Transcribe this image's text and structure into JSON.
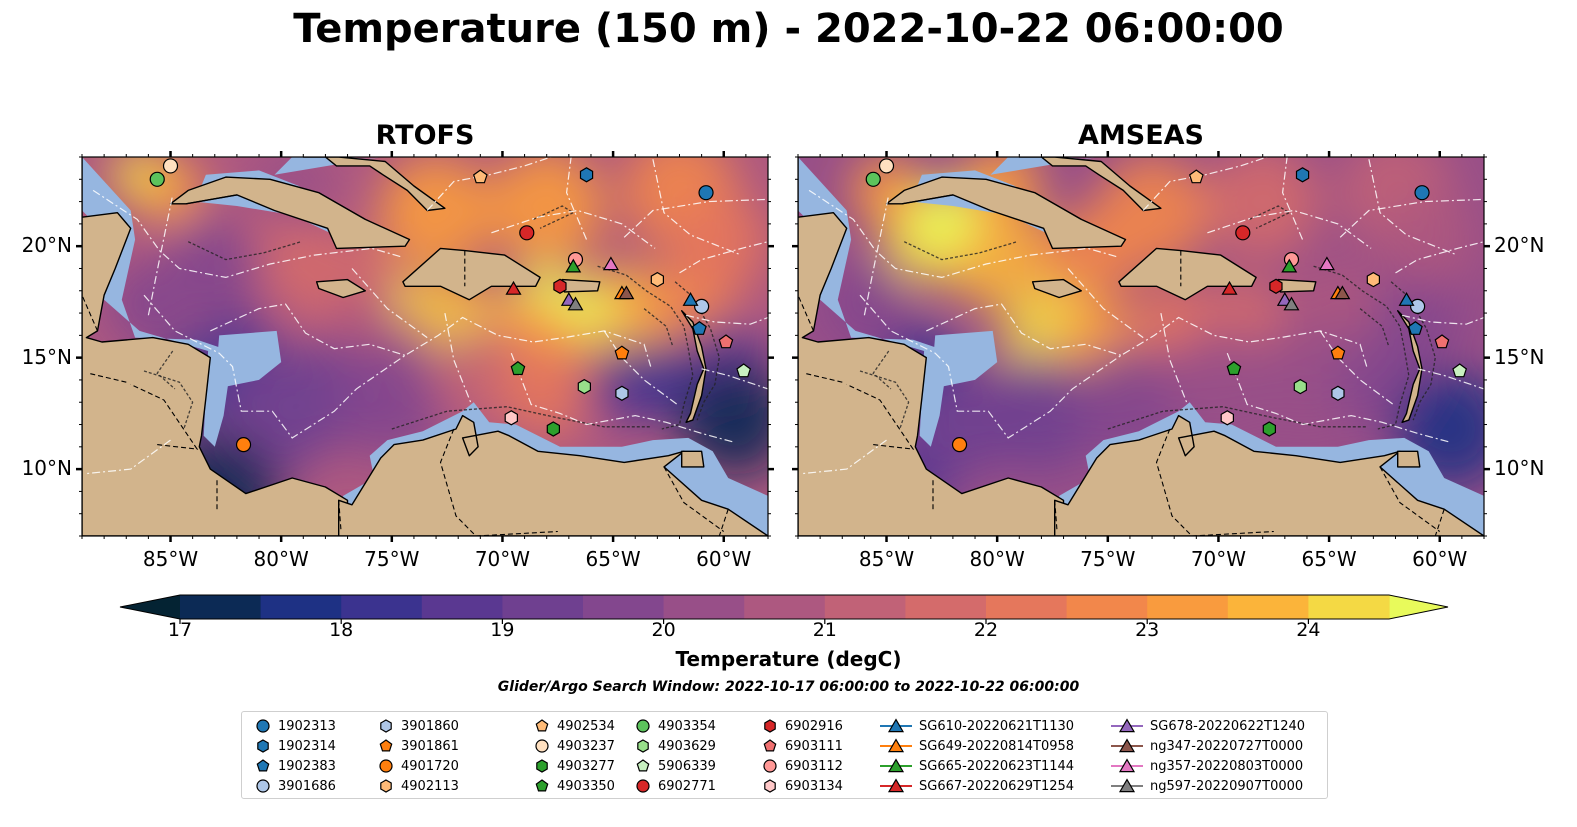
{
  "title": "Temperature (150 m) - 2022-10-22 06:00:00",
  "panels": [
    {
      "title": "RTOFS",
      "style": "rtofs"
    },
    {
      "title": "AMSEAS",
      "style": "amseas"
    }
  ],
  "map_extent": {
    "lon_min": -89,
    "lon_max": -58,
    "lat_min": 7,
    "lat_max": 24
  },
  "lon_ticks": [
    {
      "value": -85,
      "label": "85°W"
    },
    {
      "value": -80,
      "label": "80°W"
    },
    {
      "value": -75,
      "label": "75°W"
    },
    {
      "value": -70,
      "label": "70°W"
    },
    {
      "value": -65,
      "label": "65°W"
    },
    {
      "value": -60,
      "label": "60°W"
    }
  ],
  "lat_ticks": [
    {
      "value": 20,
      "label": "20°N"
    },
    {
      "value": 15,
      "label": "15°N"
    },
    {
      "value": 10,
      "label": "10°N"
    }
  ],
  "colorbar": {
    "title": "Temperature (degC)",
    "min": 16.75,
    "max": 24.5,
    "ticks": [
      {
        "value": 17,
        "label": "17"
      },
      {
        "value": 18,
        "label": "18"
      },
      {
        "value": 19,
        "label": "19"
      },
      {
        "value": 20,
        "label": "20"
      },
      {
        "value": 21,
        "label": "21"
      },
      {
        "value": 22,
        "label": "22"
      },
      {
        "value": 23,
        "label": "23"
      },
      {
        "value": 24,
        "label": "24"
      }
    ],
    "colors": [
      "#042333",
      "#0c2a55",
      "#1e3184",
      "#3b338f",
      "#5a3891",
      "#6f4090",
      "#83478e",
      "#984f88",
      "#ad5880",
      "#c16277",
      "#d46b6b",
      "#e5775c",
      "#f2874b",
      "#f99b3e",
      "#fbb43a",
      "#f4d944",
      "#e8fa5b"
    ]
  },
  "search_window": "Glider/Argo Search Window: 2022-10-17 06:00:00 to 2022-10-22 06:00:00",
  "colors": {
    "land": "#d2b48c",
    "shelf": "#96b6e0",
    "eez": "#ffffff"
  },
  "platforms": [
    {
      "name": "1902313",
      "marker": "circle",
      "color": "#1f77b4",
      "lon": -60.8,
      "lat": 22.4
    },
    {
      "name": "1902314",
      "marker": "hexagon",
      "color": "#1f77b4",
      "lon": -66.2,
      "lat": 23.2
    },
    {
      "name": "1902383",
      "marker": "pentagon",
      "color": "#1f77b4",
      "lon": -61.1,
      "lat": 16.3
    },
    {
      "name": "3901686",
      "marker": "circle",
      "color": "#aec7e8",
      "lon": -61.0,
      "lat": 17.3
    },
    {
      "name": "3901860",
      "marker": "hexagon",
      "color": "#aec7e8",
      "lon": -64.6,
      "lat": 13.4
    },
    {
      "name": "3901861",
      "marker": "pentagon",
      "color": "#ff7f0e",
      "lon": -64.6,
      "lat": 15.2
    },
    {
      "name": "4901720",
      "marker": "circle",
      "color": "#ff7f0e",
      "lon": -81.7,
      "lat": 11.1
    },
    {
      "name": "4902113",
      "marker": "hexagon",
      "color": "#ffbb78",
      "lon": -63.0,
      "lat": 18.5
    },
    {
      "name": "4902534",
      "marker": "pentagon",
      "color": "#ffbb78",
      "lon": -71.0,
      "lat": 23.1
    },
    {
      "name": "4903237",
      "marker": "circle",
      "color": "#ffe0c0",
      "lon": -85.0,
      "lat": 23.6
    },
    {
      "name": "4903277",
      "marker": "hexagon",
      "color": "#2ca02c",
      "lon": -67.7,
      "lat": 11.8
    },
    {
      "name": "4903350",
      "marker": "pentagon",
      "color": "#2ca02c",
      "lon": -69.3,
      "lat": 14.5
    },
    {
      "name": "4903354",
      "marker": "circle",
      "color": "#5cc35c",
      "lon": -85.6,
      "lat": 23.0
    },
    {
      "name": "4903629",
      "marker": "hexagon",
      "color": "#98df8a",
      "lon": -66.3,
      "lat": 13.7
    },
    {
      "name": "5906339",
      "marker": "pentagon",
      "color": "#c8f0c0",
      "lon": -59.1,
      "lat": 14.4
    },
    {
      "name": "6902771",
      "marker": "circle",
      "color": "#d62728",
      "lon": -68.9,
      "lat": 20.6
    },
    {
      "name": "6902916",
      "marker": "hexagon",
      "color": "#d62728",
      "lon": -67.4,
      "lat": 18.2
    },
    {
      "name": "6903111",
      "marker": "pentagon",
      "color": "#f07070",
      "lon": -59.9,
      "lat": 15.7
    },
    {
      "name": "6903112",
      "marker": "circle",
      "color": "#ff9896",
      "lon": -66.7,
      "lat": 19.4
    },
    {
      "name": "6903134",
      "marker": "hexagon",
      "color": "#ffc8c8",
      "lon": -69.6,
      "lat": 12.3
    },
    {
      "name": "SG610-20220621T1130",
      "marker": "triangle",
      "color": "#1f77b4",
      "lon": -61.5,
      "lat": 17.6
    },
    {
      "name": "SG649-20220814T0958",
      "marker": "triangle",
      "color": "#ff7f0e",
      "lon": -64.6,
      "lat": 17.9
    },
    {
      "name": "SG665-20220623T1144",
      "marker": "triangle",
      "color": "#2ca02c",
      "lon": -66.8,
      "lat": 19.1
    },
    {
      "name": "SG667-20220629T1254",
      "marker": "triangle",
      "color": "#d62728",
      "lon": -69.5,
      "lat": 18.1
    },
    {
      "name": "SG678-20220622T1240",
      "marker": "triangle",
      "color": "#9467bd",
      "lon": -67.0,
      "lat": 17.6
    },
    {
      "name": "ng347-20220727T0000",
      "marker": "triangle",
      "color": "#8c564b",
      "lon": -64.4,
      "lat": 17.9
    },
    {
      "name": "ng357-20220803T0000",
      "marker": "triangle",
      "color": "#e377c2",
      "lon": -65.1,
      "lat": 19.2
    },
    {
      "name": "ng597-20220907T0000",
      "marker": "triangle",
      "color": "#7f7f7f",
      "lon": -66.7,
      "lat": 17.4
    }
  ]
}
